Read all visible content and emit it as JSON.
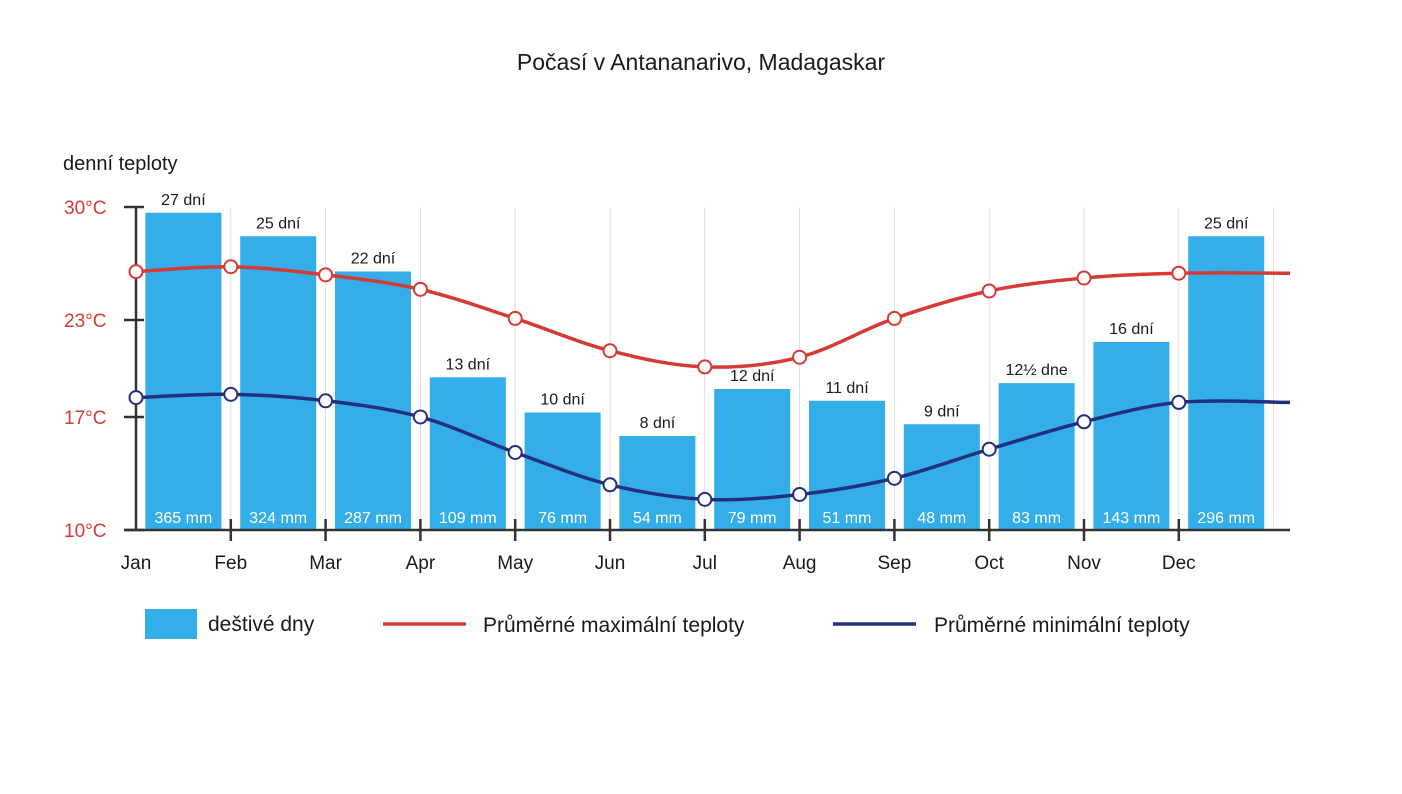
{
  "chart_data": {
    "type": "bar",
    "title": "Počasí v Antananarivo, Madagaskar",
    "ylabel": "denní teploty",
    "categories": [
      "Jan",
      "Feb",
      "Mar",
      "Apr",
      "May",
      "Jun",
      "Jul",
      "Aug",
      "Sep",
      "Oct",
      "Nov",
      "Dec"
    ],
    "y_ticks": [
      {
        "value": 30,
        "label": "30°C"
      },
      {
        "value": 23,
        "label": "23°C"
      },
      {
        "value": 17,
        "label": "17°C"
      },
      {
        "value": 10,
        "label": "10°C"
      }
    ],
    "ylim": [
      10,
      30
    ],
    "grid": true,
    "legend_position": "bottom",
    "series": [
      {
        "name": "deštivé dny",
        "type": "bar",
        "color": "#33aee8",
        "values": [
          27,
          25,
          22,
          13,
          10,
          8,
          12,
          11,
          9,
          12.5,
          16,
          25
        ],
        "day_labels": [
          "27 dní",
          "25 dní",
          "22 dní",
          "13 dní",
          "10 dní",
          "8 dní",
          "12 dní",
          "11 dní",
          "9 dní",
          "12½ dne",
          "16 dní",
          "25 dní"
        ],
        "rain_labels": [
          "365 mm",
          "324 mm",
          "287 mm",
          "109 mm",
          "76 mm",
          "54 mm",
          "79 mm",
          "51 mm",
          "48 mm",
          "83 mm",
          "143 mm",
          "296 mm"
        ]
      },
      {
        "name": "Průměrné maximální teploty",
        "type": "line",
        "color": "#d63a35",
        "values": [
          26,
          26.3,
          25.8,
          24.9,
          23.1,
          21.1,
          20.1,
          20.7,
          23.1,
          24.8,
          25.6,
          25.9
        ]
      },
      {
        "name": "Průměrné minimální teploty",
        "type": "line",
        "color": "#22307f",
        "values": [
          18.2,
          18.4,
          18.0,
          17.0,
          14.8,
          12.8,
          11.9,
          12.2,
          13.2,
          15.0,
          16.7,
          17.9
        ]
      }
    ]
  }
}
